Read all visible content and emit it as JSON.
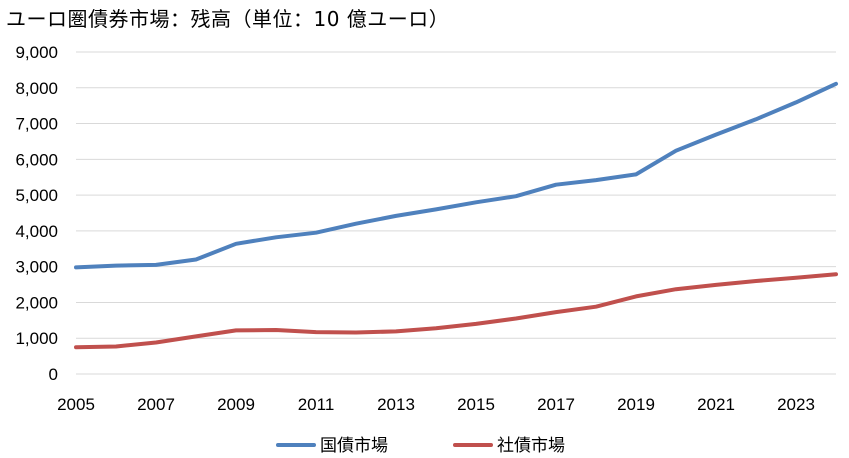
{
  "chart_data": {
    "type": "line",
    "title": "ユーロ圏債券市場：残高（単位：10 億ユーロ）",
    "xlabel": "",
    "ylabel": "",
    "ylim": [
      0,
      9000
    ],
    "yticks": [
      0,
      1000,
      2000,
      3000,
      4000,
      5000,
      6000,
      7000,
      8000,
      9000
    ],
    "ytick_labels": [
      "0",
      "1,000",
      "2,000",
      "3,000",
      "4,000",
      "5,000",
      "6,000",
      "7,000",
      "8,000",
      "9,000"
    ],
    "xlim": [
      2005,
      2024
    ],
    "xticks": [
      2005,
      2007,
      2009,
      2011,
      2013,
      2015,
      2017,
      2019,
      2021,
      2023
    ],
    "xtick_labels": [
      "2005",
      "2007",
      "2009",
      "2011",
      "2013",
      "2015",
      "2017",
      "2019",
      "2021",
      "2023"
    ],
    "grid": true,
    "legend": "bottom",
    "x": [
      2005,
      2006,
      2007,
      2008,
      2009,
      2010,
      2011,
      2012,
      2013,
      2014,
      2015,
      2016,
      2017,
      2018,
      2019,
      2020,
      2021,
      2022,
      2023,
      2024
    ],
    "series": [
      {
        "name": "国債市場",
        "color": "#4f81bd",
        "values": [
          2980,
          3030,
          3050,
          3200,
          3640,
          3820,
          3950,
          4200,
          4420,
          4600,
          4800,
          4970,
          5290,
          5420,
          5580,
          6240,
          6690,
          7120,
          7590,
          8110
        ]
      },
      {
        "name": "社債市場",
        "color": "#c0504d",
        "values": [
          750,
          770,
          880,
          1050,
          1220,
          1230,
          1170,
          1160,
          1190,
          1280,
          1400,
          1550,
          1730,
          1880,
          2170,
          2370,
          2490,
          2600,
          2690,
          2790
        ]
      }
    ]
  }
}
